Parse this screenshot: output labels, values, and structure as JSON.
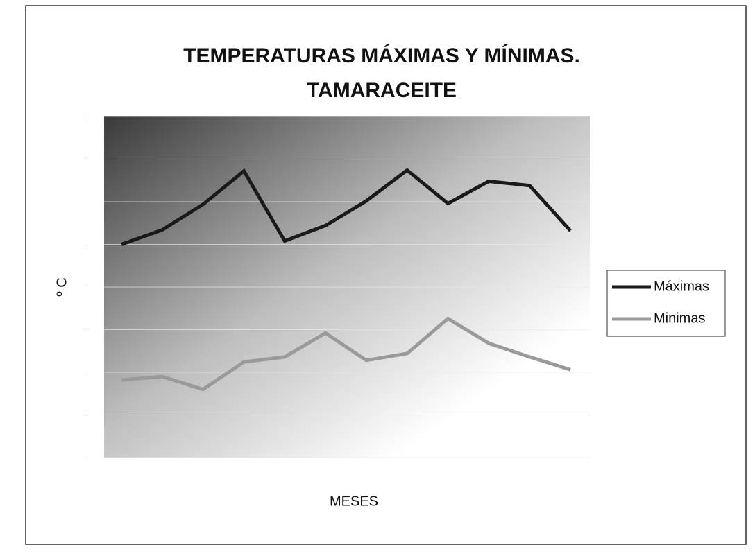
{
  "chart_data": {
    "type": "line",
    "title": "TEMPERATURAS MÁXIMAS Y MÍNIMAS.",
    "subtitle": "TAMARACEITE",
    "x_label": "MESES",
    "y_label": "º C",
    "categories": [
      null,
      null,
      null,
      null,
      null,
      null,
      null,
      null,
      null,
      null,
      null,
      null
    ],
    "series": [
      {
        "name": "Máximas",
        "color": "#1a1a1a",
        "values": [
          25.0,
          26.7,
          29.7,
          33.6,
          25.4,
          27.2,
          30.1,
          33.7,
          29.8,
          32.4,
          31.9,
          26.6
        ]
      },
      {
        "name": "Minimas",
        "color": "#9a9a9a",
        "values": [
          9.1,
          9.5,
          8.0,
          11.2,
          11.8,
          14.6,
          11.4,
          12.2,
          16.3,
          13.4,
          11.8,
          10.3
        ]
      }
    ],
    "ylim": [
      0,
      40
    ],
    "yticks": [
      0,
      5,
      10,
      15,
      20,
      25,
      30,
      35,
      40
    ],
    "grid": true,
    "legend": "right"
  }
}
